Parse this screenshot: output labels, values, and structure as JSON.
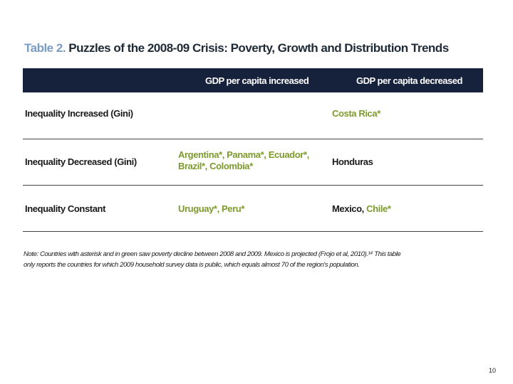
{
  "title": {
    "label": "Table 2.",
    "text": "Puzzles of the 2008-09 Crisis: Poverty, Growth and Distribution Trends"
  },
  "table": {
    "headers": [
      "GDP per capita increased",
      "GDP per capita decreased"
    ],
    "rows": [
      {
        "label": "Inequality Increased (Gini)",
        "increased": [],
        "decreased": [
          {
            "text": "Costa Rica*",
            "color": "green"
          }
        ]
      },
      {
        "label": "Inequality Decreased (Gini)",
        "increased_line1": "Argentina*, Panama*, Ecuador*,",
        "increased_line2": "Brazil*, Colombia*",
        "decreased": [
          {
            "text": "Honduras",
            "color": "dark"
          }
        ]
      },
      {
        "label": "Inequality Constant",
        "increased": [
          {
            "text": "Uruguay*, Peru*",
            "color": "green"
          }
        ],
        "decreased": [
          {
            "text": "Mexico, ",
            "color": "dark"
          },
          {
            "text": "Chile*",
            "color": "green"
          }
        ]
      }
    ]
  },
  "note": {
    "line1": "Note: Countries with asterisk and in green saw poverty decline between 2008 and 2009. Mexico is projected (Frojo et al, 2010).¹⁴ This table",
    "line2": "only reports the countries for which 2009 household survey data is public, which equals almost 70 of the region's population."
  },
  "page_number": "10",
  "colors": {
    "header_bg": "#16213b",
    "green": "#7d9a2c",
    "title_label": "#7a9cc6"
  }
}
